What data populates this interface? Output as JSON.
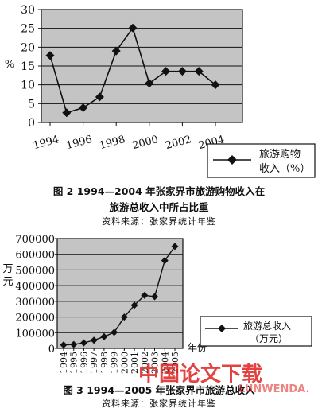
{
  "figure2": {
    "caption_line1": "图 2   1994—2004 年张家界市旅游购物收入在",
    "caption_line2": "旅游总收入中所占比重",
    "source": "资料来源：张家界统计年鉴",
    "chart_data": {
      "type": "line",
      "x": [
        1994,
        1995,
        1996,
        1997,
        1998,
        1999,
        2000,
        2001,
        2002,
        2003,
        2004
      ],
      "series": [
        {
          "name": "旅游购物收入（%）",
          "values": [
            17.8,
            2.6,
            3.9,
            6.8,
            19.0,
            25.1,
            10.4,
            13.6,
            13.6,
            13.6,
            10.0
          ]
        }
      ],
      "ylabel": "%",
      "ylim": [
        0,
        30
      ],
      "yticks": [
        0,
        5,
        10,
        15,
        20,
        25,
        30
      ],
      "xticks": [
        1994,
        1996,
        1998,
        2000,
        2002,
        2004
      ],
      "legend_line1": "旅游购物",
      "legend_line2": "收入（%）",
      "grid": true,
      "legend_position": "bottom-right, below plot",
      "color": "#111111",
      "plot_background": "#c4c4c4"
    }
  },
  "figure3": {
    "caption": "图 3  1994—2005 年张家界市旅游总收入",
    "source": "资料来源：张家界统计年鉴",
    "chart_data": {
      "type": "line",
      "x": [
        1994,
        1995,
        1996,
        1997,
        1998,
        1999,
        2000,
        2001,
        2002,
        2003,
        2004,
        2005
      ],
      "series": [
        {
          "name": "旅游总收入（万元）",
          "values": [
            22000,
            25000,
            35000,
            52000,
            75000,
            102000,
            200000,
            275000,
            338000,
            330000,
            560000,
            650000
          ]
        }
      ],
      "ylabel": "万元",
      "xlabel": "年份",
      "ylim": [
        0,
        700000
      ],
      "yticks": [
        0,
        100000,
        200000,
        300000,
        400000,
        500000,
        600000,
        700000
      ],
      "xticks": [
        1994,
        1995,
        1996,
        1997,
        1998,
        1999,
        2000,
        2001,
        2002,
        2003,
        2004,
        2005
      ],
      "legend_line1": "旅游总收入",
      "legend_line2": "（万元）",
      "grid": true,
      "legend_position": "right, inside",
      "color": "#111111",
      "plot_background": "#c4c4c4"
    }
  },
  "watermark": {
    "text_cn": "中国论文下载",
    "text_en": "LUNWENDA.",
    "color": "#e02020"
  }
}
